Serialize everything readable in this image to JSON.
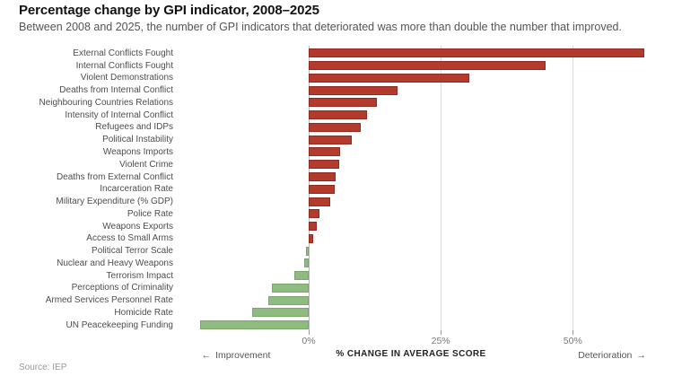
{
  "header": {
    "title": "Percentage change by GPI indicator, 2008–2025",
    "subtitle": "Between 2008 and 2025, the number of GPI indicators that deteriorated was more than double the number that improved."
  },
  "chart_data": {
    "type": "bar",
    "orientation": "horizontal",
    "title": "Percentage change by GPI indicator, 2008–2025",
    "categories": [
      "External Conflicts Fought",
      "Internal Conflicts Fought",
      "Violent Demonstrations",
      "Deaths from Internal Conflict",
      "Neighbouring Countries Relations",
      "Intensity of Internal Conflict",
      "Refugees and IDPs",
      "Political Instability",
      "Weapons Imports",
      "Violent Crime",
      "Deaths from External Conflict",
      "Incarceration Rate",
      "Military Expenditure (% GDP)",
      "Police Rate",
      "Weapons Exports",
      "Access to Small Arms",
      "Political Terror Scale",
      "Nuclear and Heavy Weapons",
      "Terrorism Impact",
      "Perceptions of Criminality",
      "Armed Services Personnel Rate",
      "Homicide Rate",
      "UN Peacekeeping Funding"
    ],
    "values": [
      63.5,
      44.8,
      30.4,
      16.9,
      12.9,
      11.0,
      9.8,
      8.1,
      6.0,
      5.7,
      5.1,
      4.9,
      4.1,
      2.0,
      1.6,
      0.9,
      -0.5,
      -0.8,
      -2.8,
      -7.0,
      -7.6,
      -10.7,
      -20.5
    ],
    "xlabel": "% CHANGE IN AVERAGE SCORE",
    "x_ticks": [
      "0%",
      "25%",
      "50%"
    ],
    "x_tick_values": [
      0,
      25,
      50
    ],
    "xlim": [
      -25.7,
      66
    ],
    "grid": "vertical",
    "legend": "none",
    "left_annotation": "Improvement",
    "right_annotation": "Deterioration",
    "left_arrow": "←",
    "right_arrow": "→",
    "colors": {
      "deterioration_fill": "#b23b2d",
      "deterioration_border": "#8f2b20",
      "improvement_fill": "#8fba80",
      "improvement_border": "#7aa76b",
      "gridline": "#dcdcdc",
      "zero_line": "#b8b8b8"
    }
  },
  "footer": {
    "source": "Source: IEP"
  }
}
